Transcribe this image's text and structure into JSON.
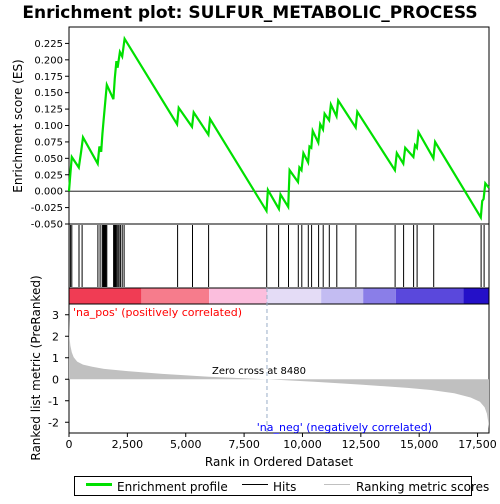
{
  "chart_data": {
    "type": "line",
    "title": "Enrichment plot: SULFUR_METABOLIC_PROCESS",
    "es_panel": {
      "ylabel": "Enrichment score (ES)",
      "ylim": [
        -0.05,
        0.25
      ],
      "yticks": [
        "-0.050",
        "-0.025",
        "0.000",
        "0.025",
        "0.050",
        "0.075",
        "0.100",
        "0.125",
        "0.150",
        "0.175",
        "0.200",
        "0.225"
      ],
      "ytick_values": [
        -0.05,
        -0.025,
        0,
        0.025,
        0.05,
        0.075,
        0.1,
        0.125,
        0.15,
        0.175,
        0.2,
        0.225
      ],
      "series": [
        {
          "name": "Enrichment profile",
          "color": "#00e000",
          "x": [
            0,
            60,
            120,
            420,
            520,
            600,
            1230,
            1300,
            1380,
            1430,
            1480,
            1550,
            1620,
            1900,
            1960,
            2030,
            2080,
            2180,
            2280,
            2380,
            4630,
            4700,
            5270,
            5340,
            5970,
            6040,
            8460,
            8520,
            8990,
            9060,
            9390,
            9450,
            9810,
            9870,
            9960,
            10040,
            10240,
            10300,
            10380,
            10440,
            10680,
            10760,
            10880,
            10950,
            11140,
            11220,
            11460,
            11530,
            12280,
            12350,
            13960,
            14040,
            14320,
            14400,
            14750,
            14820,
            14900,
            14970,
            15610,
            15680,
            17640,
            17700,
            17760,
            17830,
            17990
          ],
          "y": [
            0.0,
            0.027,
            0.052,
            0.036,
            0.06,
            0.082,
            0.042,
            0.068,
            0.06,
            0.087,
            0.108,
            0.135,
            0.162,
            0.14,
            0.172,
            0.198,
            0.188,
            0.212,
            0.205,
            0.232,
            0.102,
            0.127,
            0.098,
            0.12,
            0.086,
            0.11,
            -0.03,
            0.002,
            -0.027,
            -0.005,
            -0.024,
            0.032,
            0.014,
            0.036,
            0.032,
            0.058,
            0.044,
            0.068,
            0.066,
            0.092,
            0.074,
            0.102,
            0.094,
            0.118,
            0.108,
            0.132,
            0.114,
            0.138,
            0.097,
            0.121,
            0.032,
            0.058,
            0.042,
            0.066,
            0.052,
            0.07,
            0.066,
            0.09,
            0.05,
            0.075,
            -0.04,
            -0.015,
            -0.012,
            0.012,
            0.005
          ]
        }
      ],
      "zero_line": 0
    },
    "hits": [
      60,
      120,
      430,
      560,
      1240,
      1330,
      1420,
      1460,
      1500,
      1540,
      1580,
      1620,
      1910,
      1950,
      1990,
      2040,
      2090,
      2140,
      2200,
      2280,
      2360,
      4650,
      5290,
      5980,
      8470,
      8980,
      9400,
      9820,
      9970,
      10250,
      10390,
      10690,
      10890,
      11150,
      11470,
      12290,
      13970,
      14330,
      14760,
      14910,
      15620,
      17650,
      17780
    ],
    "ranking_panel": {
      "ylabel": "Ranked list metric (PreRanked)",
      "xlabel": "Rank in Ordered Dataset",
      "ylim": [
        -2.5,
        3.5
      ],
      "yticks": [
        "-2",
        "-1",
        "0",
        "1",
        "2",
        "3"
      ],
      "ytick_values": [
        -2,
        -1,
        0,
        1,
        2,
        3
      ],
      "xlim": [
        0,
        17990
      ],
      "xticks": [
        "0",
        "2,500",
        "5,000",
        "7,500",
        "10,000",
        "12,500",
        "15,000",
        "17,500"
      ],
      "xtick_values": [
        0,
        2500,
        5000,
        7500,
        10000,
        12500,
        15000,
        17500
      ],
      "metric_profile": {
        "x": [
          0,
          20,
          60,
          120,
          200,
          350,
          600,
          1000,
          1500,
          2500,
          4000,
          6000,
          8480,
          10500,
          12500,
          14500,
          15500,
          16500,
          17200,
          17600,
          17800,
          17900,
          17960,
          17990
        ],
        "y": [
          2.9,
          1.95,
          1.55,
          1.25,
          1.02,
          0.82,
          0.68,
          0.58,
          0.48,
          0.38,
          0.25,
          0.12,
          0.0,
          -0.12,
          -0.25,
          -0.4,
          -0.5,
          -0.65,
          -0.85,
          -1.05,
          -1.3,
          -1.6,
          -2.0,
          -2.3
        ]
      },
      "zero_cross_label": "Zero cross at 8480",
      "zero_cross": 8480,
      "pos_label": "'na_pos' (positively correlated)",
      "neg_label": "'na_neg' (negatively correlated)",
      "pos_color": "#ff0000",
      "neg_color": "#0000ff"
    },
    "heat_bar": {
      "segments": [
        {
          "from": 0,
          "to": 3100,
          "color": "#f03c54"
        },
        {
          "from": 3100,
          "to": 6000,
          "color": "#f67c8c"
        },
        {
          "from": 6000,
          "to": 8480,
          "color": "#fbbedd"
        },
        {
          "from": 8480,
          "to": 10800,
          "color": "#e4dcf6"
        },
        {
          "from": 10800,
          "to": 12600,
          "color": "#c3bcf2"
        },
        {
          "from": 12600,
          "to": 14000,
          "color": "#8a7ee8"
        },
        {
          "from": 14000,
          "to": 16900,
          "color": "#5a48dc"
        },
        {
          "from": 16900,
          "to": 17990,
          "color": "#2410c8"
        }
      ]
    },
    "legend": {
      "items": [
        {
          "label": "Enrichment profile",
          "color": "#00e000"
        },
        {
          "label": "Hits",
          "color": "#000000"
        },
        {
          "label": "Ranking metric scores",
          "color": "#c0c0c0"
        }
      ]
    }
  }
}
